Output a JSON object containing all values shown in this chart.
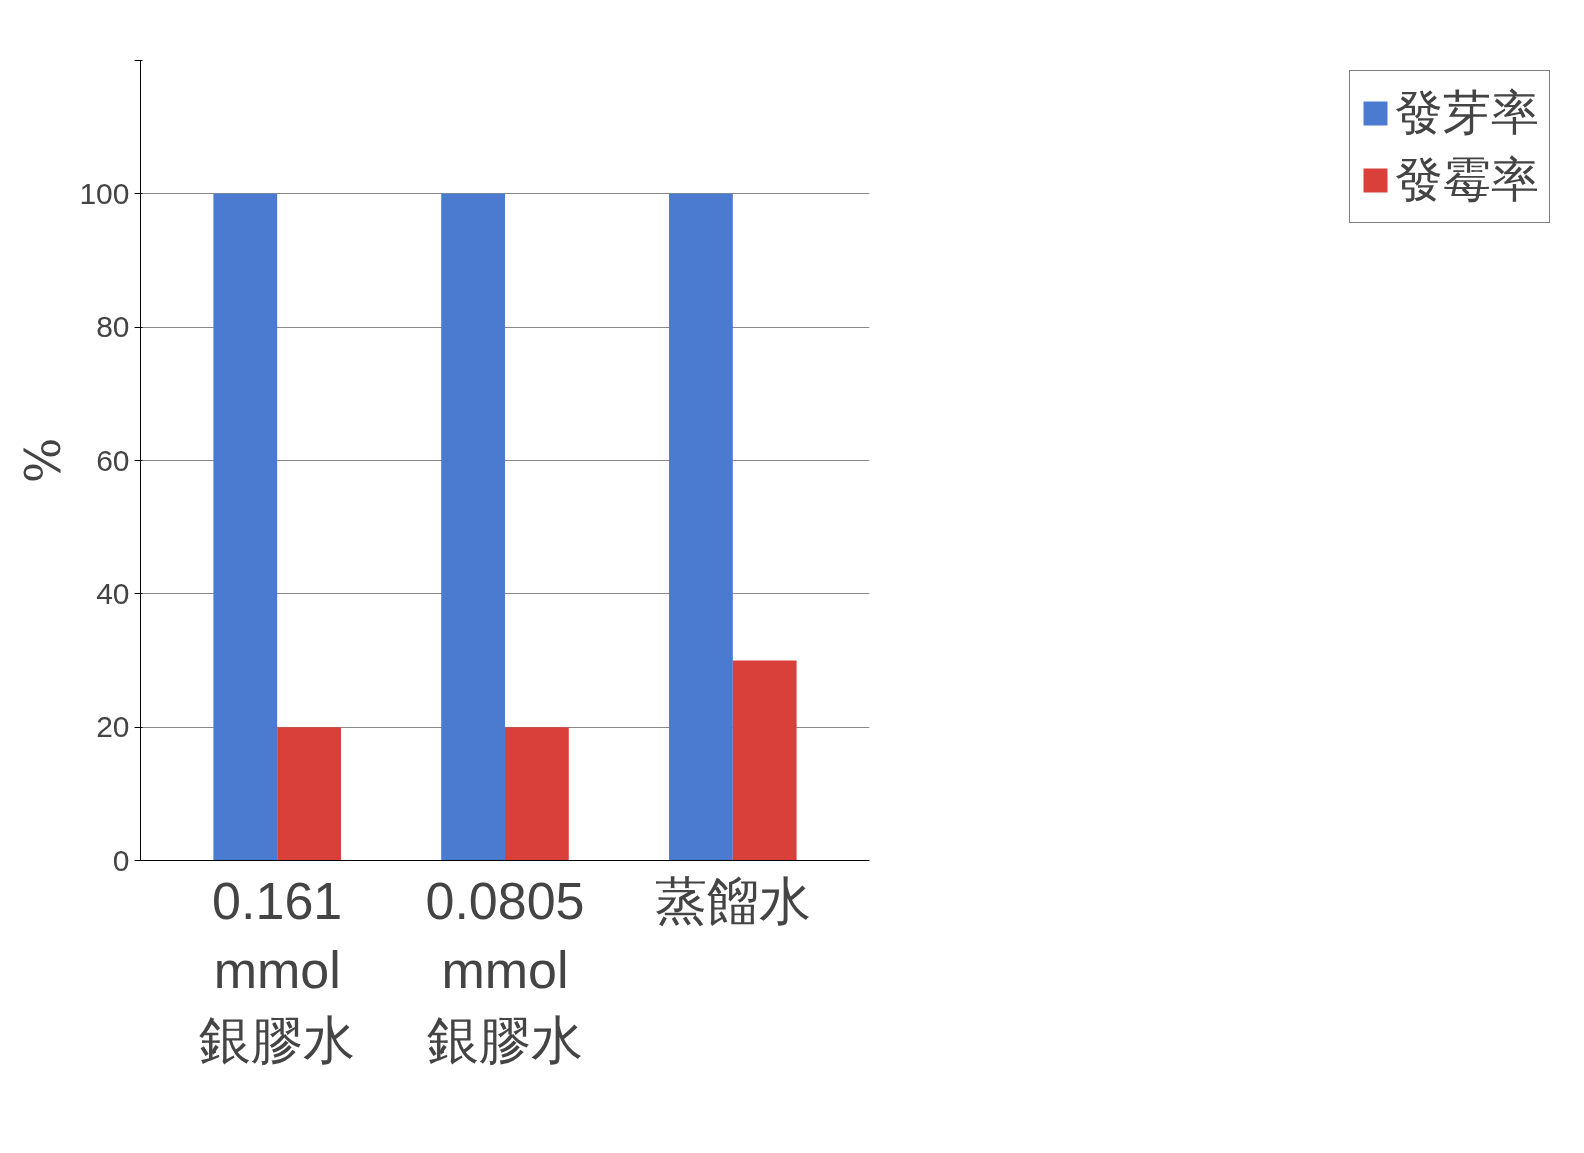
{
  "chart_data": {
    "type": "bar",
    "ylabel": "%",
    "categories": [
      "0.161 mmol 銀膠水",
      "0.0805 mmol 銀膠水",
      "蒸餾水"
    ],
    "series": [
      {
        "name": "發芽率",
        "color": "#4a7bd0",
        "values": [
          100,
          100,
          100
        ]
      },
      {
        "name": "發霉率",
        "color": "#d9403a",
        "values": [
          20,
          20,
          30
        ]
      }
    ],
    "ylim": [
      0,
      120
    ],
    "yticks": [
      0,
      20,
      40,
      60,
      80,
      100,
      {
        "value": 120,
        "label": null
      }
    ],
    "grid": "y",
    "legend": "right"
  }
}
